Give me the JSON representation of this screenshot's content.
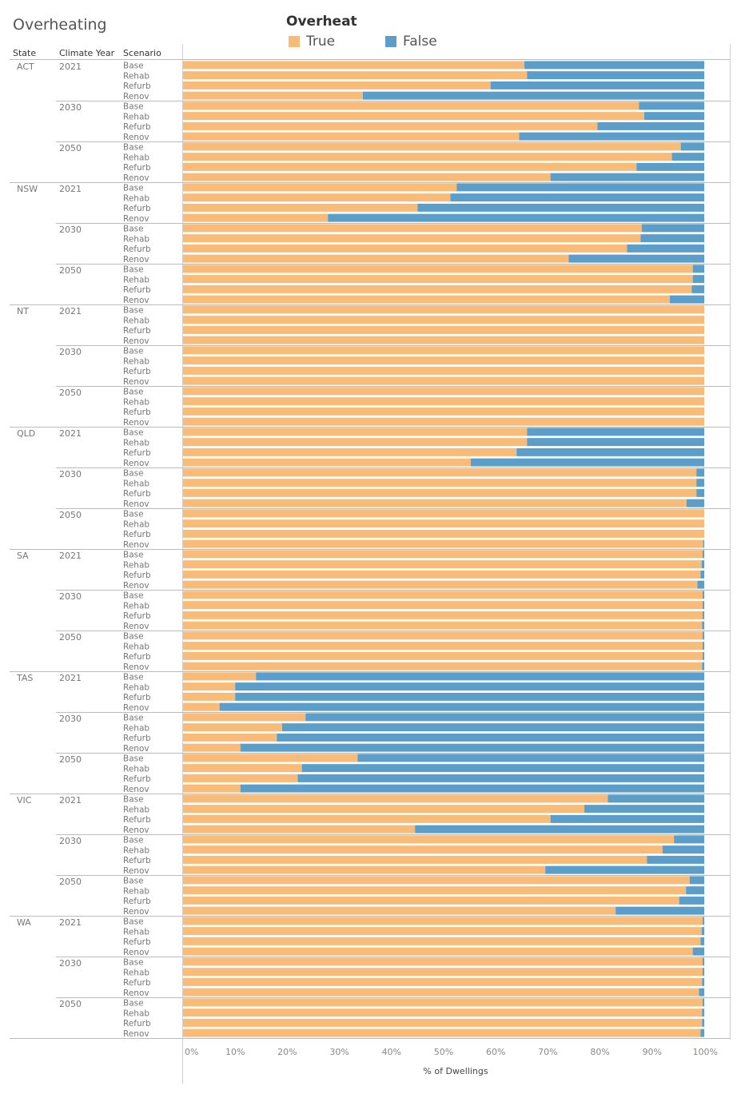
{
  "title": "Overheating",
  "legend": {
    "title": "Overheat",
    "items": [
      {
        "label": "True",
        "color": "#F9BB78"
      },
      {
        "label": "False",
        "color": "#5B9EC9"
      }
    ]
  },
  "headers": {
    "state": "State",
    "climate_year": "Climate Year",
    "scenario": "Scenario"
  },
  "chart_data": {
    "type": "bar",
    "orientation": "horizontal",
    "stacked": "100%",
    "xlabel": "% of Dwellings",
    "xlim": [
      0,
      100
    ],
    "ticks": [
      "0%",
      "10%",
      "20%",
      "30%",
      "40%",
      "50%",
      "60%",
      "70%",
      "80%",
      "90%",
      "100%"
    ],
    "scenarios": [
      "Base",
      "Rehab",
      "Refurb",
      "Renov"
    ],
    "series": [
      {
        "name": "True",
        "color": "#F9BB78"
      },
      {
        "name": "False",
        "color": "#5B9EC9"
      }
    ],
    "note": "values are the True (overheat) share in % of dwellings; False share is the remainder",
    "states": [
      {
        "state": "ACT",
        "years": [
          {
            "year": "2021",
            "true_pct": [
              65.5,
              66,
              59,
              34.5
            ]
          },
          {
            "year": "2030",
            "true_pct": [
              87.5,
              88.5,
              79.5,
              64.5
            ]
          },
          {
            "year": "2050",
            "true_pct": [
              95.5,
              93.8,
              87,
              70.5
            ]
          }
        ]
      },
      {
        "state": "NSW",
        "years": [
          {
            "year": "2021",
            "true_pct": [
              52.5,
              51.3,
              45,
              27.8
            ]
          },
          {
            "year": "2030",
            "true_pct": [
              88,
              87.8,
              85.2,
              74
            ]
          },
          {
            "year": "2050",
            "true_pct": [
              97.8,
              97.8,
              97.6,
              93.4
            ]
          }
        ]
      },
      {
        "state": "NT",
        "years": [
          {
            "year": "2021",
            "true_pct": [
              100,
              100,
              100,
              100
            ]
          },
          {
            "year": "2030",
            "true_pct": [
              100,
              100,
              100,
              100
            ]
          },
          {
            "year": "2050",
            "true_pct": [
              100,
              100,
              100,
              100
            ]
          }
        ]
      },
      {
        "state": "QLD",
        "years": [
          {
            "year": "2021",
            "true_pct": [
              66,
              66,
              64,
              55.2
            ]
          },
          {
            "year": "2030",
            "true_pct": [
              98.5,
              98.5,
              98.5,
              96.6
            ]
          },
          {
            "year": "2050",
            "true_pct": [
              100,
              100,
              100,
              99.8
            ]
          }
        ]
      },
      {
        "state": "SA",
        "years": [
          {
            "year": "2021",
            "true_pct": [
              99.7,
              99.5,
              99.3,
              98.7
            ]
          },
          {
            "year": "2030",
            "true_pct": [
              99.7,
              99.7,
              99.7,
              99.6
            ]
          },
          {
            "year": "2050",
            "true_pct": [
              99.7,
              99.7,
              99.7,
              99.6
            ]
          }
        ]
      },
      {
        "state": "TAS",
        "years": [
          {
            "year": "2021",
            "true_pct": [
              14,
              10,
              10,
              7
            ]
          },
          {
            "year": "2030",
            "true_pct": [
              23.5,
              19,
              18,
              11
            ]
          },
          {
            "year": "2050",
            "true_pct": [
              33.5,
              22.8,
              22,
              11
            ]
          }
        ]
      },
      {
        "state": "VIC",
        "years": [
          {
            "year": "2021",
            "true_pct": [
              81.5,
              77,
              70.5,
              44.5
            ]
          },
          {
            "year": "2030",
            "true_pct": [
              94.2,
              92,
              89,
              69.5
            ]
          },
          {
            "year": "2050",
            "true_pct": [
              97.2,
              96.5,
              95.2,
              83
            ]
          }
        ]
      },
      {
        "state": "WA",
        "years": [
          {
            "year": "2021",
            "true_pct": [
              99.7,
              99.5,
              99.3,
              97.8
            ]
          },
          {
            "year": "2030",
            "true_pct": [
              99.7,
              99.7,
              99.6,
              99
            ]
          },
          {
            "year": "2050",
            "true_pct": [
              99.7,
              99.6,
              99.6,
              99.3
            ]
          }
        ]
      }
    ]
  }
}
